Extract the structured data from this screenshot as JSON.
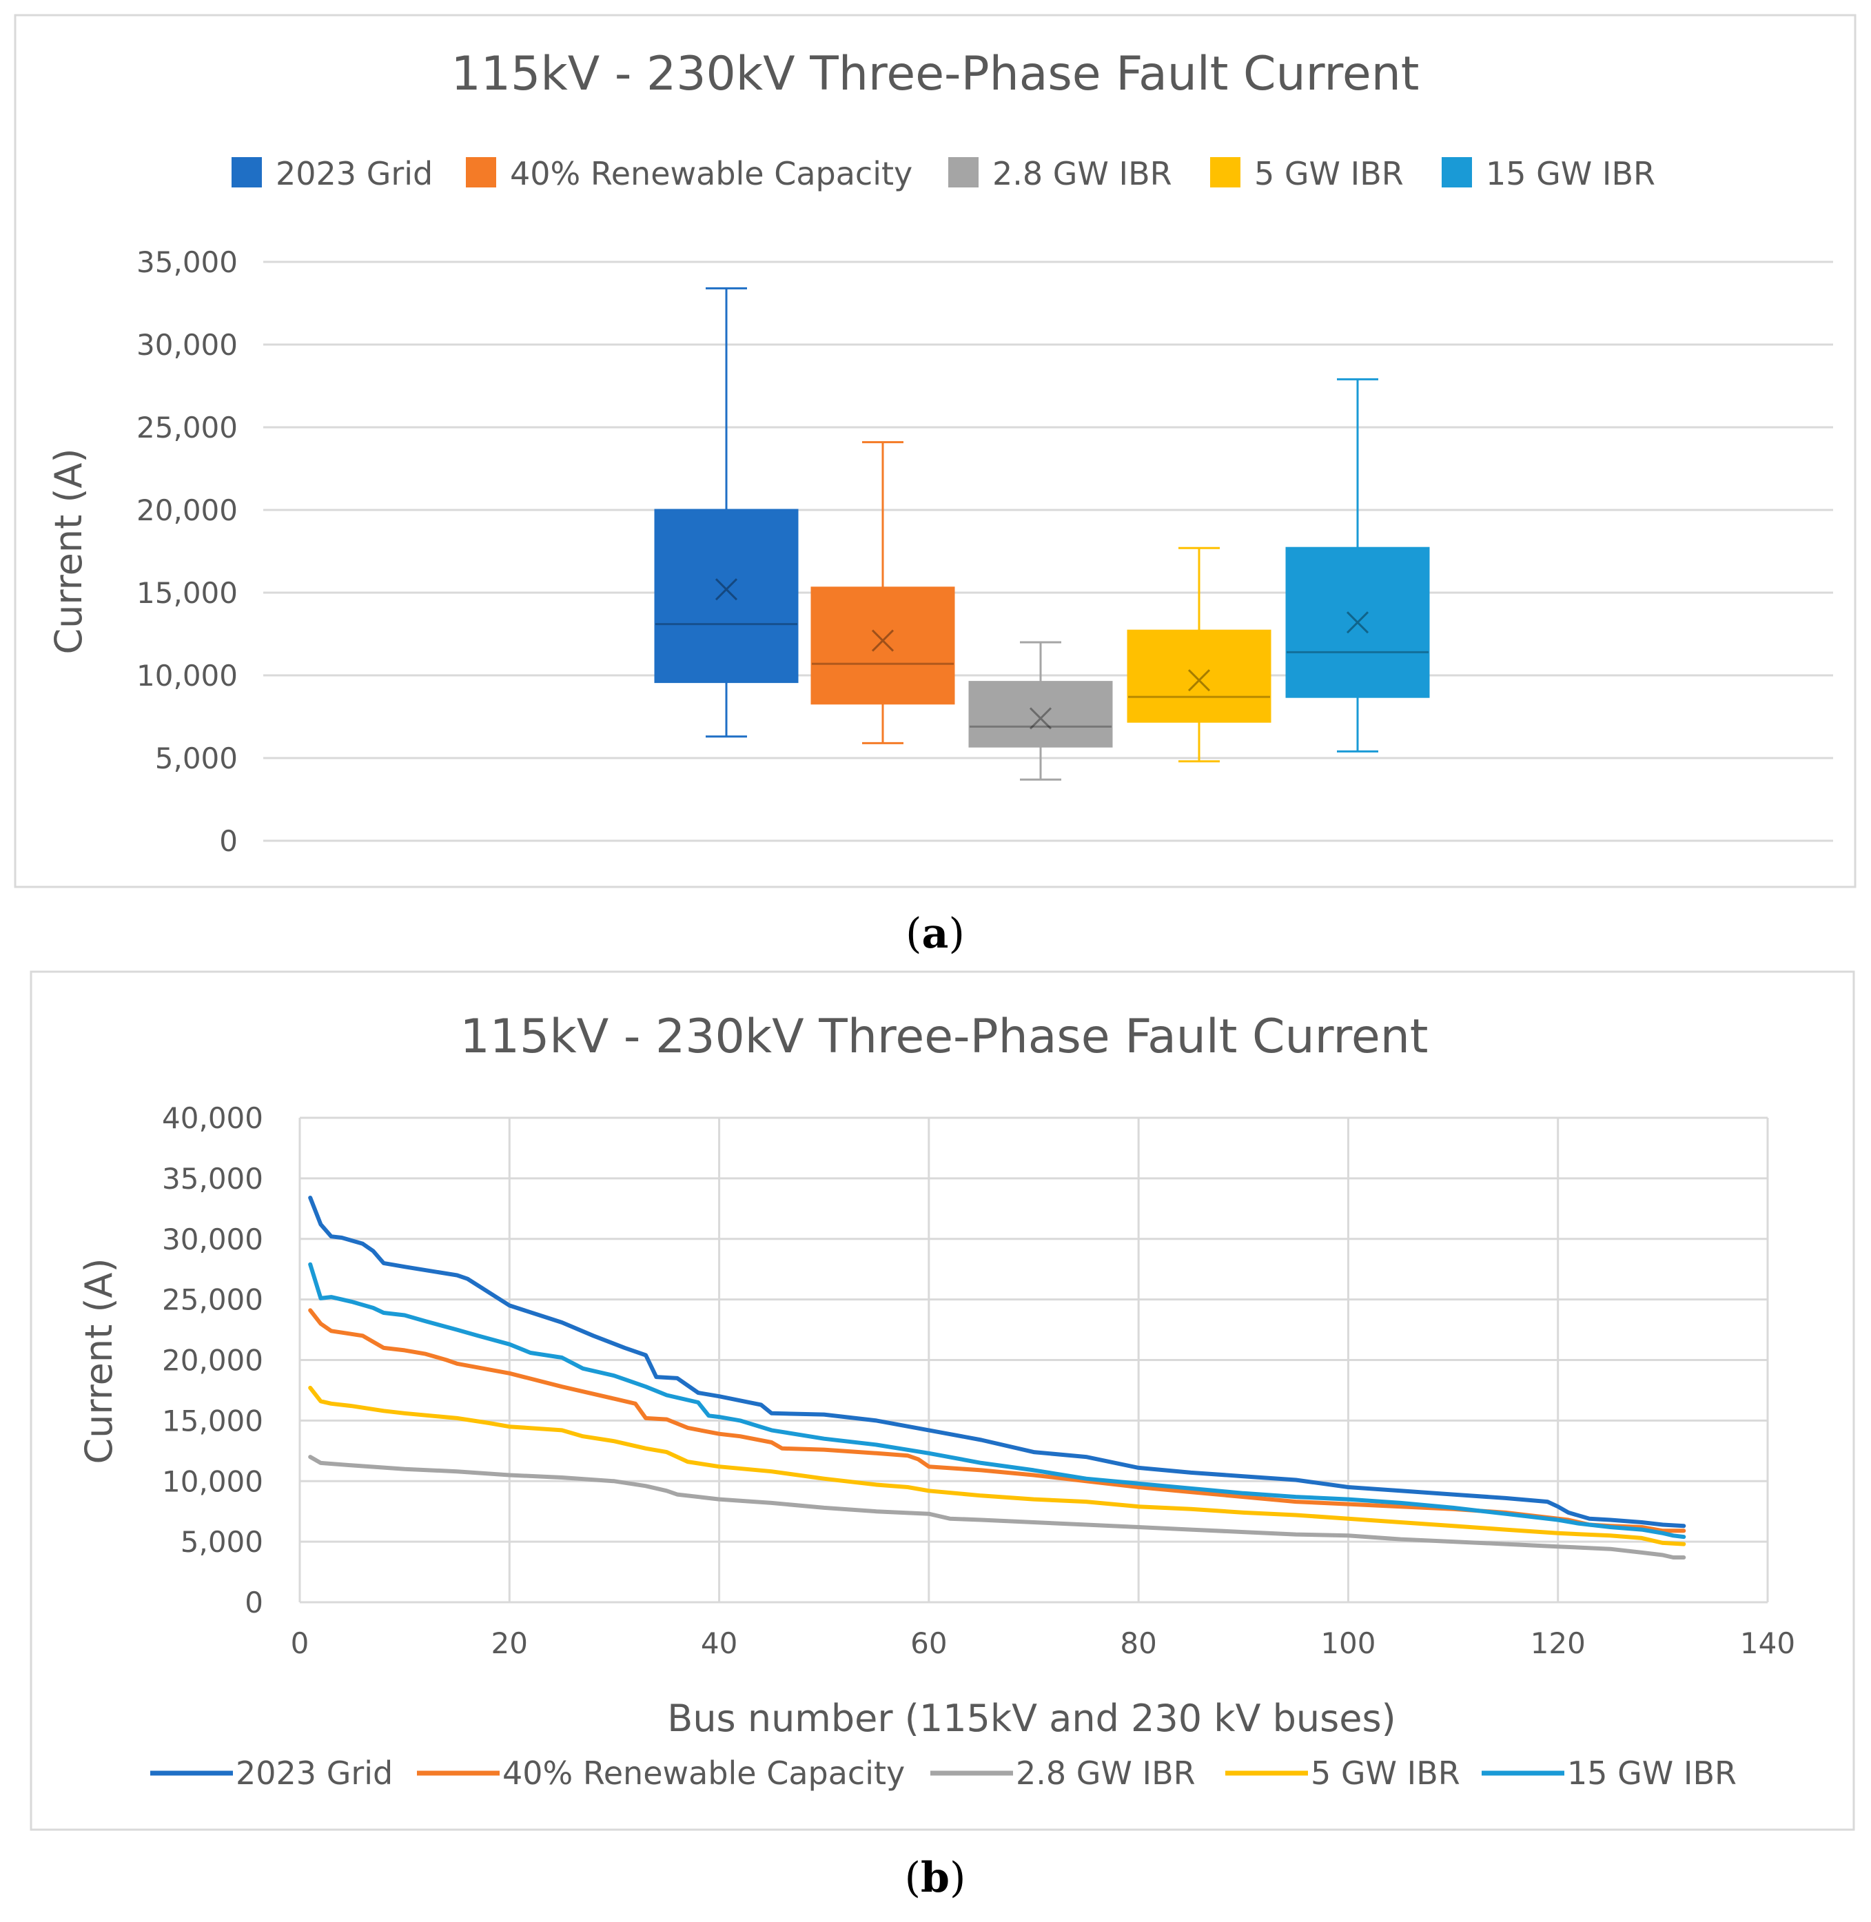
{
  "panels": [
    {
      "caption": "a",
      "chart_data": {
        "type": "box",
        "title": "115kV - 230kV Three-Phase Fault Current",
        "ylabel": "Current (A)",
        "xlabel": "",
        "ylim": [
          0,
          35000
        ],
        "yticks": [
          0,
          5000,
          10000,
          15000,
          20000,
          25000,
          30000,
          35000
        ],
        "ytick_labels": [
          "0",
          "5,000",
          "10,000",
          "15,000",
          "20,000",
          "25,000",
          "30,000",
          "35,000"
        ],
        "grid": true,
        "legend_position": "top",
        "series": [
          {
            "name": "2023 Grid",
            "color": "#1f6fc5",
            "min": 6300,
            "q1": 9600,
            "median": 13100,
            "q3": 20000,
            "max": 33400,
            "mean": 15200
          },
          {
            "name": "40% Renewable Capacity",
            "color": "#f47b27",
            "min": 5900,
            "q1": 8300,
            "median": 10700,
            "q3": 15300,
            "max": 24100,
            "mean": 12100
          },
          {
            "name": "2.8 GW IBR",
            "color": "#a5a5a5",
            "min": 3700,
            "q1": 5700,
            "median": 6900,
            "q3": 9600,
            "max": 12000,
            "mean": 7400
          },
          {
            "name": "5 GW IBR",
            "color": "#ffc000",
            "min": 4800,
            "q1": 7200,
            "median": 8700,
            "q3": 12700,
            "max": 17700,
            "mean": 9700
          },
          {
            "name": "15 GW IBR",
            "color": "#1a9ad6",
            "min": 5400,
            "q1": 8700,
            "median": 11400,
            "q3": 17700,
            "max": 27900,
            "mean": 13200
          }
        ]
      }
    },
    {
      "caption": "b",
      "chart_data": {
        "type": "line",
        "title": "115kV - 230kV Three-Phase Fault Current",
        "ylabel": "Current (A)",
        "xlabel": "Bus number (115kV and 230 kV buses)",
        "xlim": [
          0,
          140
        ],
        "ylim": [
          0,
          40000
        ],
        "xticks": [
          0,
          20,
          40,
          60,
          80,
          100,
          120,
          140
        ],
        "xtick_labels": [
          "0",
          "20",
          "40",
          "60",
          "80",
          "100",
          "120",
          "140"
        ],
        "yticks": [
          0,
          5000,
          10000,
          15000,
          20000,
          25000,
          30000,
          35000,
          40000
        ],
        "ytick_labels": [
          "0",
          "5,000",
          "10,000",
          "15,000",
          "20,000",
          "25,000",
          "30,000",
          "35,000",
          "40,000"
        ],
        "grid": true,
        "legend_position": "bottom",
        "series": [
          {
            "name": "2023 Grid",
            "color": "#1f6fc5",
            "x": [
              1,
              2,
              3,
              4,
              6,
              7,
              8,
              10,
              15,
              16,
              20,
              25,
              28,
              31,
              33,
              34,
              36,
              38,
              40,
              44,
              45,
              50,
              55,
              60,
              65,
              70,
              75,
              80,
              85,
              90,
              95,
              100,
              105,
              110,
              115,
              119,
              120,
              121,
              123,
              125,
              128,
              130,
              132
            ],
            "y": [
              33400,
              31200,
              30200,
              30100,
              29600,
              29000,
              28000,
              27700,
              27000,
              26700,
              24500,
              23100,
              22000,
              21000,
              20400,
              18600,
              18500,
              17300,
              17000,
              16300,
              15600,
              15500,
              15000,
              14200,
              13400,
              12400,
              12000,
              11100,
              10700,
              10400,
              10100,
              9500,
              9200,
              8900,
              8600,
              8300,
              7900,
              7400,
              6900,
              6800,
              6600,
              6400,
              6300
            ]
          },
          {
            "name": "40% Renewable Capacity",
            "color": "#f47b27",
            "x": [
              1,
              2,
              3,
              6,
              8,
              10,
              12,
              14,
              15,
              20,
              25,
              30,
              32,
              33,
              35,
              37,
              40,
              42,
              45,
              46,
              50,
              55,
              58,
              59,
              60,
              65,
              70,
              75,
              80,
              85,
              90,
              95,
              100,
              105,
              110,
              115,
              118,
              121,
              123,
              125,
              128,
              130,
              132
            ],
            "y": [
              24100,
              23000,
              22400,
              22000,
              21000,
              20800,
              20500,
              20000,
              19700,
              18900,
              17800,
              16800,
              16400,
              15200,
              15100,
              14400,
              13900,
              13700,
              13200,
              12700,
              12600,
              12300,
              12100,
              11800,
              11200,
              10900,
              10500,
              10000,
              9500,
              9100,
              8700,
              8300,
              8100,
              7900,
              7700,
              7400,
              7100,
              6800,
              6400,
              6300,
              6200,
              5900,
              5900
            ]
          },
          {
            "name": "2.8 GW IBR",
            "color": "#a5a5a5",
            "x": [
              1,
              2,
              5,
              10,
              15,
              20,
              25,
              30,
              33,
              35,
              36,
              40,
              45,
              50,
              55,
              60,
              62,
              65,
              70,
              75,
              80,
              85,
              90,
              95,
              100,
              105,
              110,
              115,
              120,
              125,
              128,
              130,
              131,
              132
            ],
            "y": [
              12000,
              11500,
              11300,
              11000,
              10800,
              10500,
              10300,
              10000,
              9600,
              9200,
              8900,
              8500,
              8200,
              7800,
              7500,
              7300,
              6900,
              6800,
              6600,
              6400,
              6200,
              6000,
              5800,
              5600,
              5500,
              5200,
              5000,
              4800,
              4600,
              4400,
              4100,
              3900,
              3700,
              3700
            ]
          },
          {
            "name": "5 GW IBR",
            "color": "#ffc000",
            "x": [
              1,
              2,
              3,
              5,
              8,
              10,
              15,
              18,
              20,
              25,
              27,
              30,
              33,
              35,
              37,
              40,
              45,
              50,
              55,
              58,
              60,
              65,
              70,
              75,
              80,
              85,
              90,
              95,
              100,
              105,
              110,
              115,
              120,
              125,
              128,
              130,
              132
            ],
            "y": [
              17700,
              16600,
              16400,
              16200,
              15800,
              15600,
              15200,
              14800,
              14500,
              14200,
              13700,
              13300,
              12700,
              12400,
              11600,
              11200,
              10800,
              10200,
              9700,
              9500,
              9200,
              8800,
              8500,
              8300,
              7900,
              7700,
              7400,
              7200,
              6900,
              6600,
              6300,
              6000,
              5700,
              5500,
              5300,
              4900,
              4800
            ]
          },
          {
            "name": "15 GW IBR",
            "color": "#1a9ad6",
            "x": [
              1,
              2,
              3,
              5,
              7,
              8,
              10,
              12,
              15,
              17,
              20,
              22,
              25,
              27,
              30,
              33,
              35,
              38,
              39,
              40,
              42,
              45,
              50,
              55,
              60,
              65,
              70,
              75,
              80,
              85,
              90,
              95,
              100,
              105,
              110,
              115,
              120,
              122,
              125,
              128,
              130,
              131,
              132
            ],
            "y": [
              27900,
              25100,
              25200,
              24800,
              24300,
              23900,
              23700,
              23200,
              22500,
              22000,
              21300,
              20600,
              20200,
              19300,
              18700,
              17800,
              17100,
              16500,
              15400,
              15300,
              15000,
              14200,
              13500,
              13000,
              12300,
              11500,
              10900,
              10200,
              9800,
              9400,
              9000,
              8700,
              8500,
              8200,
              7800,
              7300,
              6800,
              6500,
              6200,
              6000,
              5700,
              5500,
              5400
            ]
          }
        ]
      }
    }
  ]
}
